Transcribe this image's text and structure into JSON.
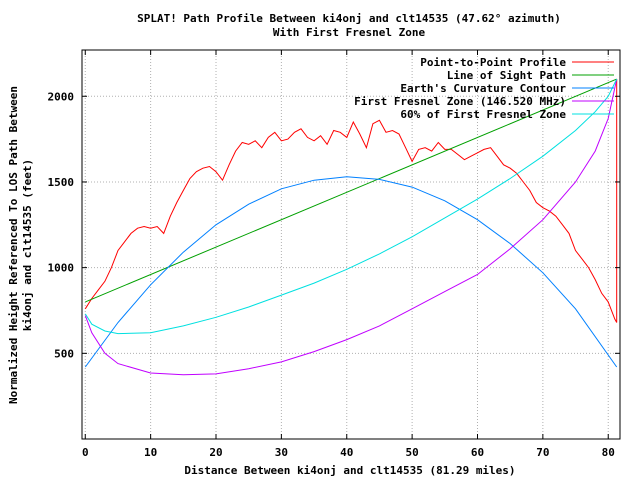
{
  "chart_data": {
    "type": "line",
    "title_line1": "SPLAT! Path Profile Between ki4onj and clt14535 (47.62° azimuth)",
    "title_line2": "With First Fresnel Zone",
    "xlabel": "Distance Between ki4onj and clt14535 (81.29 miles)",
    "ylabel_line1": "Normalized Height Referenced To LOS Path Between",
    "ylabel_line2": "ki4onj and clt14535 (feet)",
    "xlim": [
      -0.5,
      81.8
    ],
    "ylim": [
      0,
      2270
    ],
    "xticks": [
      0,
      10,
      20,
      30,
      40,
      50,
      60,
      70,
      80
    ],
    "yticks": [
      500,
      1000,
      1500,
      2000
    ],
    "grid": true,
    "legend_position": "top-right",
    "series": [
      {
        "name": "Point-to-Point Profile",
        "color": "#ff0000",
        "x": [
          0,
          1,
          2,
          3,
          4,
          5,
          6,
          7,
          8,
          9,
          10,
          11,
          12,
          13,
          14,
          15,
          16,
          17,
          18,
          19,
          20,
          21,
          22,
          23,
          24,
          25,
          26,
          27,
          28,
          29,
          30,
          31,
          32,
          33,
          34,
          35,
          36,
          37,
          38,
          39,
          40,
          41,
          42,
          43,
          44,
          45,
          46,
          47,
          48,
          49,
          50,
          51,
          52,
          53,
          54,
          55,
          56,
          57,
          58,
          59,
          60,
          61,
          62,
          63,
          64,
          65,
          66,
          67,
          68,
          69,
          70,
          71,
          72,
          73,
          74,
          75,
          76,
          77,
          78,
          79,
          80,
          81,
          81.29,
          81.29
        ],
        "values": [
          760,
          820,
          870,
          920,
          1000,
          1100,
          1150,
          1200,
          1230,
          1240,
          1230,
          1240,
          1200,
          1300,
          1380,
          1450,
          1520,
          1560,
          1580,
          1590,
          1560,
          1510,
          1600,
          1680,
          1730,
          1720,
          1740,
          1700,
          1760,
          1790,
          1740,
          1750,
          1790,
          1810,
          1760,
          1740,
          1770,
          1720,
          1800,
          1790,
          1760,
          1850,
          1780,
          1700,
          1840,
          1860,
          1790,
          1800,
          1780,
          1700,
          1620,
          1690,
          1700,
          1680,
          1730,
          1690,
          1690,
          1660,
          1630,
          1650,
          1670,
          1690,
          1700,
          1650,
          1600,
          1580,
          1550,
          1500,
          1450,
          1380,
          1350,
          1330,
          1300,
          1250,
          1200,
          1100,
          1050,
          1000,
          930,
          850,
          800,
          700,
          680,
          2100
        ]
      },
      {
        "name": "Line of Sight Path",
        "color": "#00a000",
        "x": [
          0,
          81.29
        ],
        "values": [
          800,
          2100
        ]
      },
      {
        "name": "Earth's Curvature Contour",
        "color": "#0080ff",
        "x": [
          0,
          5,
          10,
          15,
          20,
          25,
          30,
          35,
          40,
          45,
          50,
          55,
          60,
          65,
          70,
          75,
          81.29
        ],
        "values": [
          420,
          680,
          900,
          1090,
          1250,
          1370,
          1460,
          1510,
          1530,
          1515,
          1470,
          1390,
          1280,
          1140,
          970,
          760,
          420
        ]
      },
      {
        "name": "First Fresnel Zone (146.520 MHz)",
        "color": "#c000ff",
        "x": [
          0,
          1,
          3,
          5,
          10,
          15,
          20,
          25,
          30,
          35,
          40,
          45,
          50,
          55,
          60,
          65,
          70,
          75,
          78,
          80,
          81.29
        ],
        "values": [
          720,
          620,
          500,
          440,
          385,
          375,
          380,
          410,
          450,
          510,
          580,
          660,
          760,
          860,
          960,
          1110,
          1280,
          1500,
          1680,
          1870,
          2100
        ]
      },
      {
        "name": "60% of First Fresnel Zone",
        "color": "#00e0e0",
        "x": [
          0,
          1,
          3,
          5,
          10,
          15,
          20,
          25,
          30,
          35,
          40,
          45,
          50,
          55,
          60,
          65,
          70,
          75,
          78,
          80,
          81.29
        ],
        "values": [
          730,
          670,
          630,
          615,
          620,
          660,
          710,
          770,
          840,
          910,
          990,
          1080,
          1180,
          1290,
          1400,
          1520,
          1650,
          1800,
          1910,
          2000,
          2100
        ]
      }
    ]
  }
}
